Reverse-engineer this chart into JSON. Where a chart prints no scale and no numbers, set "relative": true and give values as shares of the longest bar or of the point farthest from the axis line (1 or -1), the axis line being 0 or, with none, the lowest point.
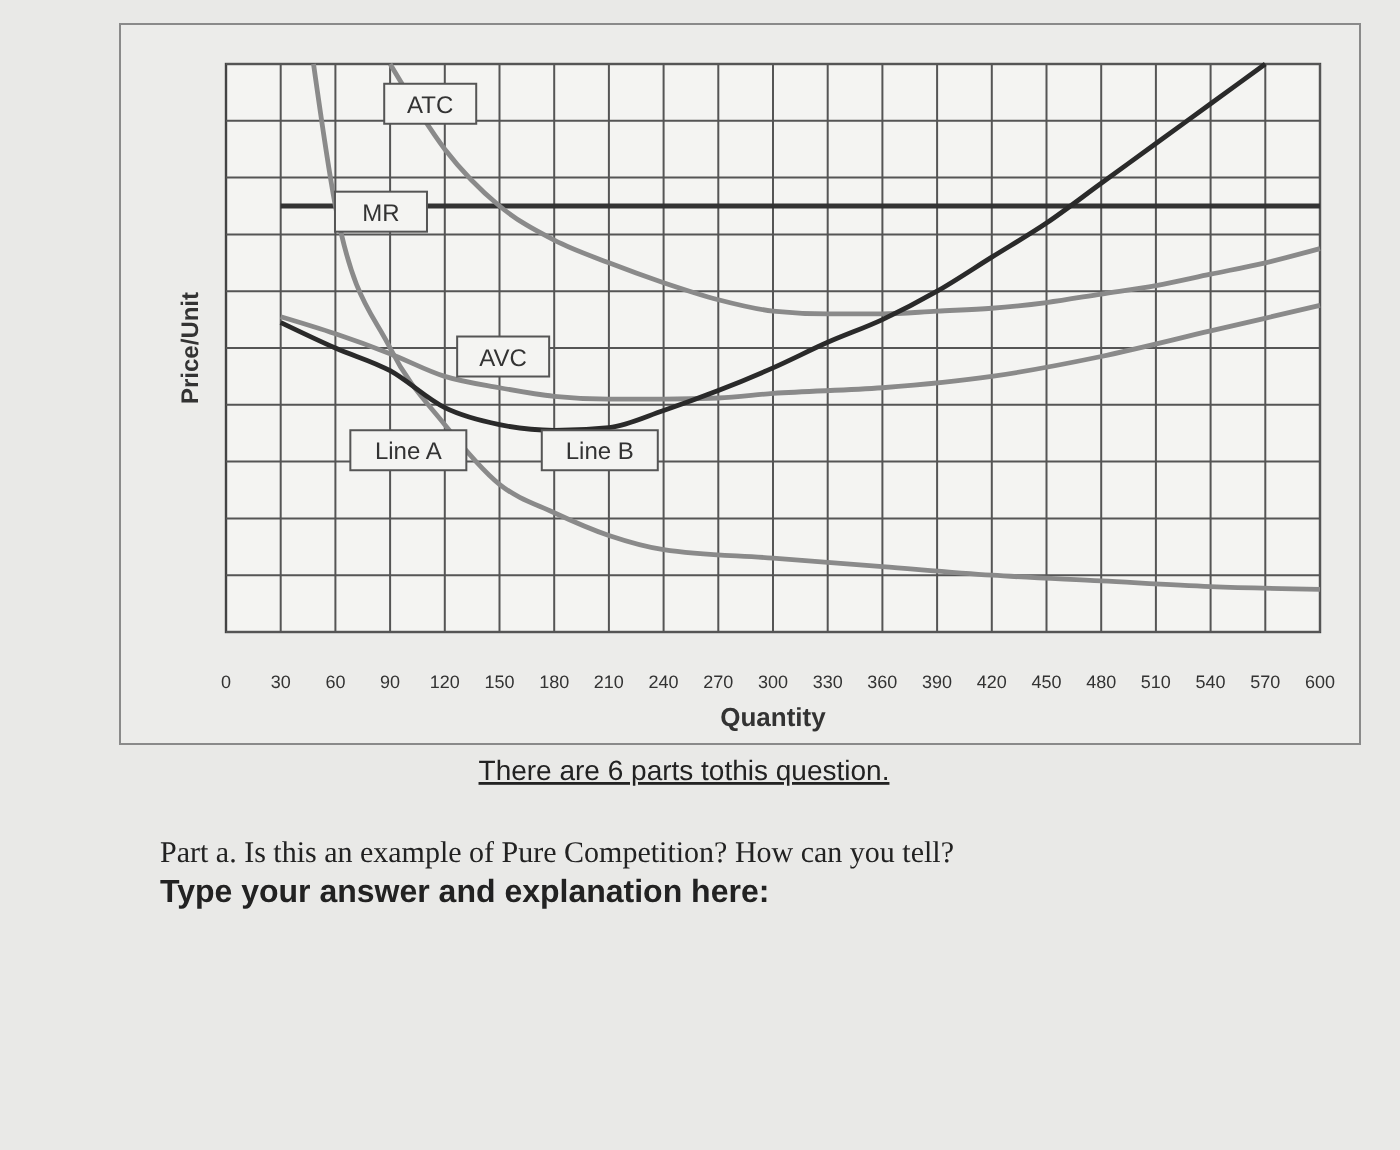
{
  "chart_data": {
    "type": "line",
    "relative": true,
    "xlabel": "Quantity",
    "ylabel": "Price/Unit",
    "xlim": [
      0,
      600
    ],
    "xticks": [
      0,
      30,
      60,
      90,
      120,
      150,
      180,
      210,
      240,
      270,
      300,
      330,
      360,
      390,
      420,
      450,
      480,
      510,
      540,
      570,
      600
    ],
    "grid": true,
    "series": [
      {
        "name": "MR",
        "color": "#333333",
        "x": [
          30,
          600
        ],
        "values": [
          0.75,
          0.75
        ]
      },
      {
        "name": "ATC",
        "color": "#8a8a8a",
        "x": [
          90,
          120,
          150,
          180,
          210,
          240,
          270,
          300,
          330,
          360,
          390,
          420,
          450,
          480,
          510,
          540,
          570,
          600
        ],
        "values": [
          1.0,
          0.85,
          0.75,
          0.69,
          0.65,
          0.615,
          0.585,
          0.565,
          0.56,
          0.56,
          0.565,
          0.57,
          0.58,
          0.595,
          0.61,
          0.63,
          0.65,
          0.675
        ]
      },
      {
        "name": "AVC",
        "color": "#8a8a8a",
        "x": [
          30,
          60,
          90,
          120,
          150,
          180,
          210,
          240,
          270,
          300,
          360,
          420,
          480,
          540,
          600
        ],
        "values": [
          0.555,
          0.525,
          0.49,
          0.45,
          0.43,
          0.415,
          0.41,
          0.41,
          0.412,
          0.42,
          0.43,
          0.45,
          0.485,
          0.53,
          0.575
        ]
      },
      {
        "name": "Line A",
        "color": "#8a8a8a",
        "x": [
          48,
          60,
          90,
          120,
          150,
          180,
          210,
          240,
          300,
          360,
          420,
          480,
          540,
          600
        ],
        "values": [
          1.0,
          0.75,
          0.5,
          0.365,
          0.26,
          0.21,
          0.17,
          0.145,
          0.13,
          0.115,
          0.1,
          0.09,
          0.08,
          0.075
        ]
      },
      {
        "name": "Line B",
        "color": "#2a2a2a",
        "x": [
          30,
          60,
          90,
          120,
          150,
          180,
          210,
          240,
          270,
          300,
          330,
          360,
          390,
          420,
          450,
          480,
          510,
          540,
          570
        ],
        "values": [
          0.545,
          0.5,
          0.46,
          0.395,
          0.365,
          0.355,
          0.36,
          0.39,
          0.425,
          0.465,
          0.51,
          0.55,
          0.6,
          0.66,
          0.72,
          0.79,
          0.86,
          0.93,
          1.0
        ]
      }
    ],
    "annotations": [
      "There are 6 parts tothis question.",
      "Part a. Is this an example of Pure Competition? How can you tell?",
      "Type your answer and explanation here:"
    ]
  }
}
